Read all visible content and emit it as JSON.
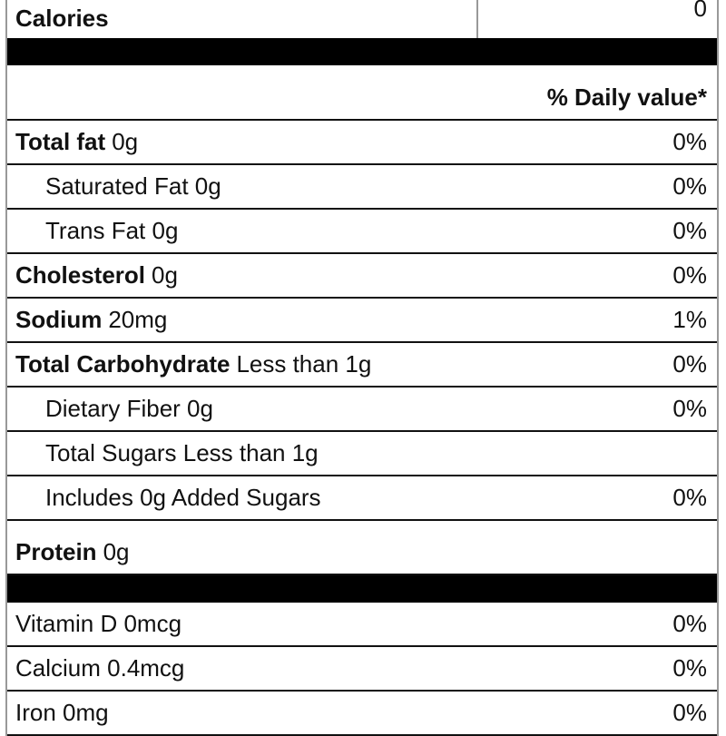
{
  "calories": {
    "label": "Calories",
    "value": "0"
  },
  "daily_value_header": "% Daily value*",
  "nutrients": [
    {
      "name": "Total fat",
      "amount": "0g",
      "daily_value": "0%"
    },
    {
      "name": "Saturated Fat 0g",
      "daily_value": "0%"
    },
    {
      "name": "Trans Fat 0g",
      "daily_value": "0%"
    },
    {
      "name": "Cholesterol",
      "amount": "0g",
      "daily_value": "0%"
    },
    {
      "name": "Sodium",
      "amount": "20mg",
      "daily_value": "1%"
    },
    {
      "name": "Total Carbohydrate",
      "amount": "Less than 1g",
      "daily_value": "0%"
    },
    {
      "name": "Dietary Fiber 0g",
      "daily_value": "0%"
    },
    {
      "name": "Total Sugars Less than 1g"
    },
    {
      "name": "Includes 0g Added Sugars",
      "daily_value": "0%"
    },
    {
      "name": "Protein",
      "amount": "0g"
    }
  ],
  "vitamins": [
    {
      "name": "Vitamin D 0mcg",
      "daily_value": "0%"
    },
    {
      "name": "Calcium 0.4mcg",
      "daily_value": "0%"
    },
    {
      "name": "Iron 0mg",
      "daily_value": "0%"
    }
  ]
}
